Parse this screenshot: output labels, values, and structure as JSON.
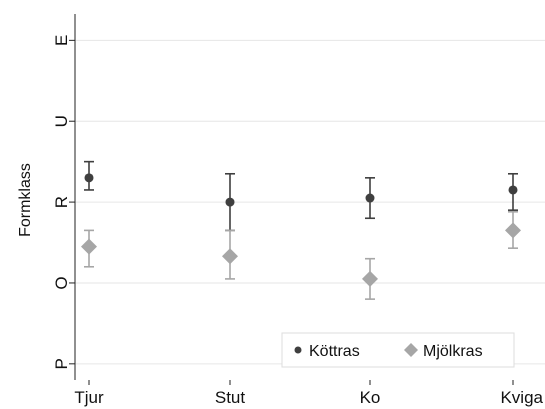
{
  "chart_data": {
    "type": "scatter",
    "ylabel": "Formklass",
    "categories": [
      "Tjur",
      "Stut",
      "Ko",
      "Kviga"
    ],
    "y_ticks": [
      "P",
      "O",
      "R",
      "U",
      "E"
    ],
    "ylim": [
      0.8,
      5.4
    ],
    "grid": true,
    "legend_position": "bottom-right",
    "series": [
      {
        "name": "Köttras",
        "marker": "circle",
        "color": "#3f3f3f",
        "values": [
          3.3,
          3.0,
          3.05,
          3.15
        ],
        "lower": [
          3.15,
          2.65,
          2.8,
          2.9
        ],
        "upper": [
          3.5,
          3.35,
          3.3,
          3.35
        ]
      },
      {
        "name": "Mjölkras",
        "marker": "diamond",
        "color": "#a6a6a6",
        "values": [
          2.45,
          2.33,
          2.05,
          2.65
        ],
        "lower": [
          2.2,
          2.05,
          1.8,
          2.43
        ],
        "upper": [
          2.65,
          2.65,
          2.3,
          2.88
        ]
      }
    ]
  }
}
